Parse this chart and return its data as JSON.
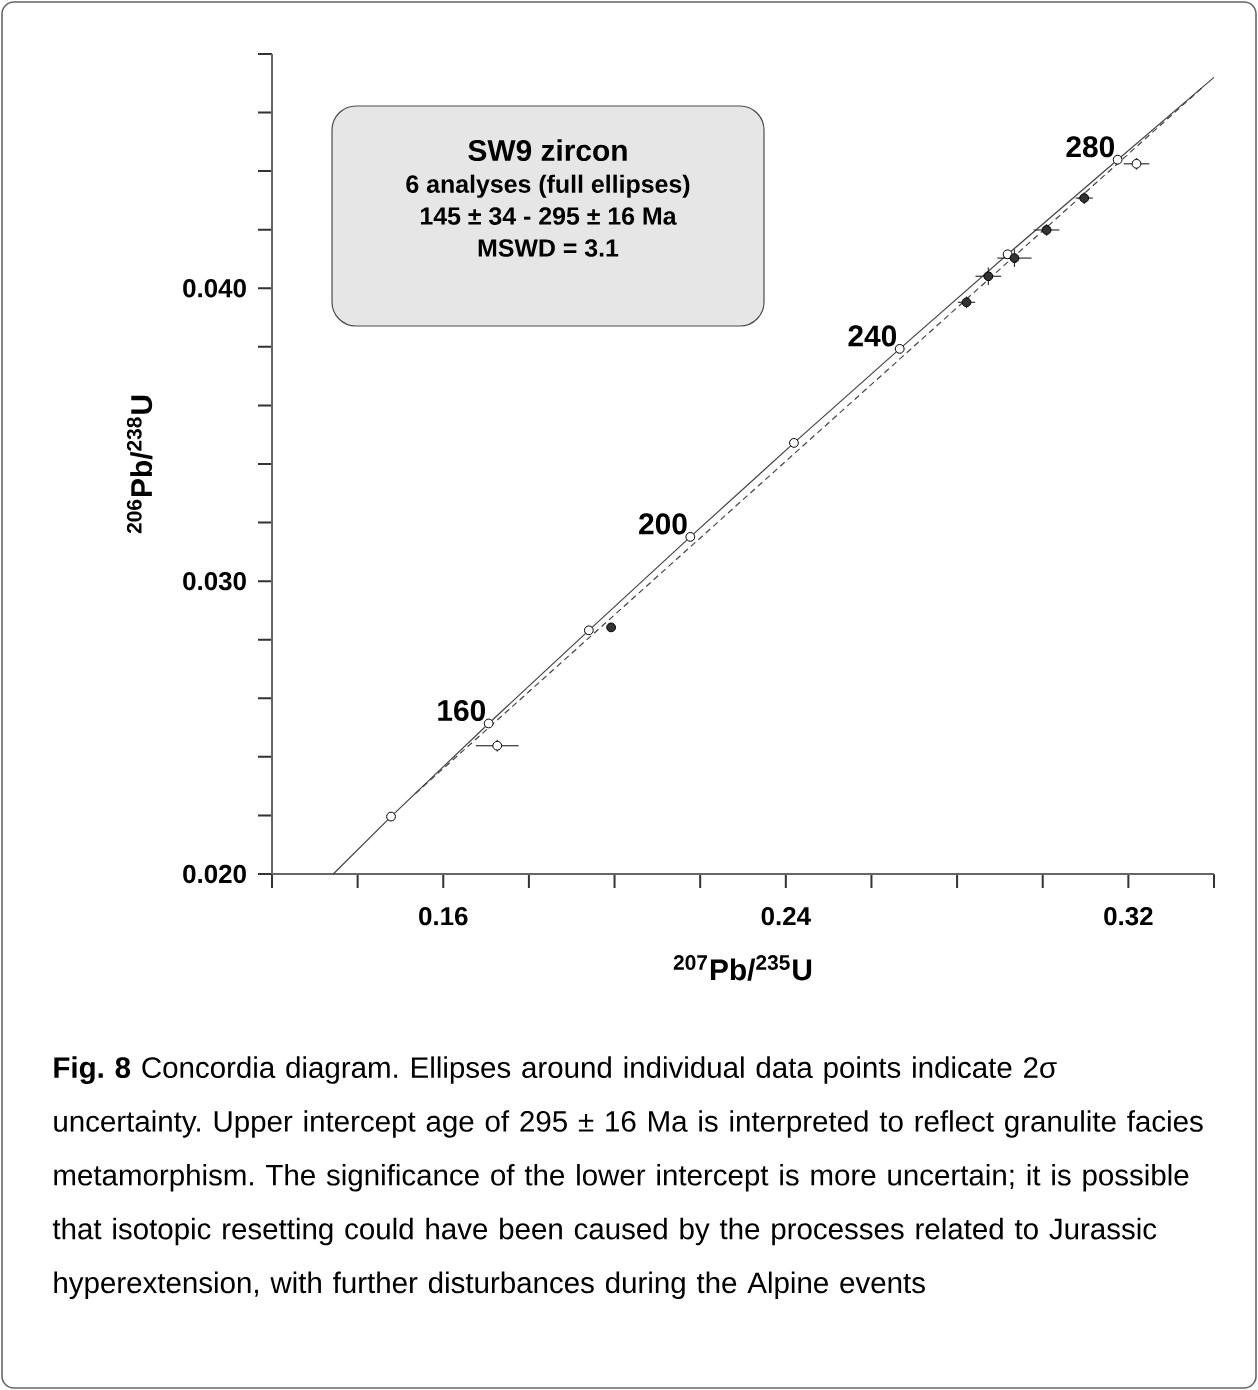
{
  "chart_data": {
    "type": "scatter",
    "xlabel": "$^{207}$Pb/$^{235}$U",
    "ylabel": "$^{206}$Pb/$^{238}$U",
    "xlim": [
      0.12,
      0.34
    ],
    "ylim": [
      0.02,
      0.048
    ],
    "xticks": [
      {
        "value": 0.12,
        "label": null
      },
      {
        "value": 0.14,
        "label": null
      },
      0.16,
      {
        "value": 0.18,
        "label": null
      },
      {
        "value": 0.2,
        "label": null
      },
      {
        "value": 0.22,
        "label": null
      },
      0.24,
      {
        "value": 0.26,
        "label": null
      },
      {
        "value": 0.28,
        "label": null
      },
      {
        "value": 0.3,
        "label": null
      },
      0.32,
      {
        "value": 0.34,
        "label": null
      }
    ],
    "yticks": [
      {
        "value": 0.02,
        "label": "0.020"
      },
      {
        "value": 0.022,
        "label": null
      },
      {
        "value": 0.024,
        "label": null
      },
      {
        "value": 0.026,
        "label": null
      },
      {
        "value": 0.028,
        "label": null
      },
      {
        "value": 0.03,
        "label": "0.030"
      },
      {
        "value": 0.032,
        "label": null
      },
      {
        "value": 0.034,
        "label": null
      },
      {
        "value": 0.036,
        "label": null
      },
      {
        "value": 0.038,
        "label": null
      },
      {
        "value": 0.04,
        "label": "0.040"
      },
      {
        "value": 0.042,
        "label": null
      },
      {
        "value": 0.044,
        "label": null
      },
      {
        "value": 0.046,
        "label": null
      },
      {
        "value": 0.048,
        "label": null
      }
    ],
    "series": [
      {
        "type": "line",
        "line_style": "solid",
        "marker": "none",
        "color": "#444444",
        "x": [
          0.1343,
          0.1478,
          0.1706,
          0.194,
          0.2177,
          0.2419,
          0.2666,
          0.2918,
          0.3175,
          0.34
        ],
        "values": [
          0.02,
          0.02196,
          0.02514,
          0.02832,
          0.03151,
          0.03472,
          0.03793,
          0.04116,
          0.04439,
          0.0472
        ]
      },
      {
        "type": "line",
        "line_style": "dashed",
        "marker": "none",
        "color": "#444444",
        "x": [
          0.1535,
          0.3371
        ],
        "values": [
          0.02275,
          0.04683
        ]
      },
      {
        "marker": "circle",
        "color": "#ffffff",
        "x": [
          0.1478,
          0.1706,
          0.194,
          0.2177,
          0.2419,
          0.2666,
          0.2918,
          0.3175
        ],
        "values": [
          0.02196,
          0.02514,
          0.02832,
          0.03151,
          0.03472,
          0.03793,
          0.04116,
          0.04439
        ]
      },
      {
        "marker": "circle",
        "color": "#333333",
        "x": [
          0.1992,
          0.2822,
          0.2873,
          0.2934,
          0.3009,
          0.3097
        ],
        "values": [
          0.02842,
          0.03952,
          0.04041,
          0.04103,
          0.04199,
          0.04308
        ],
        "xerrors": [
          0.001,
          0.002,
          0.003,
          0.004,
          0.003,
          0.002
        ],
        "errors": [
          0.0001,
          0.0002,
          0.0003,
          0.0003,
          0.0002,
          0.0002
        ]
      },
      {
        "marker": "circle",
        "color": "#ffffff",
        "x": [
          0.1726,
          0.3219
        ],
        "values": [
          0.02438,
          0.04425
        ],
        "xerrors": [
          0.005,
          0.003
        ],
        "errors": [
          0.0002,
          0.0002
        ]
      }
    ],
    "annotations": [
      {
        "text": "160",
        "x": 0.1706,
        "y": 0.02514
      },
      {
        "text": "200",
        "x": 0.2177,
        "y": 0.03151
      },
      {
        "text": "240",
        "x": 0.2666,
        "y": 0.03793
      },
      {
        "text": "280",
        "x": 0.3175,
        "y": 0.04439
      },
      "SW9 zircon",
      "6 analyses (full ellipses)",
      "145 ± 34  -  295 ± 16 Ma",
      "MSWD = 3.1",
      "**Fig. 8**  Concordia diagram. Ellipses around individual data points indicate 2σ uncertainty. Upper intercept age of 295 ± 16 Ma is interpreted to reflect granulite facies metamorphism. The significance of the lower intercept is more uncertain; it is possible that isotopic resetting could have been caused by the processes related to Jurassic hyperextension, with further disturbances during the Alpine events"
    ]
  }
}
